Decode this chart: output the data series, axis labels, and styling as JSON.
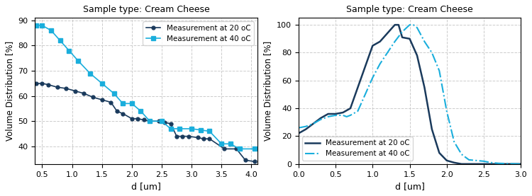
{
  "title": "Sample type: Cream Cheese",
  "xlabel": "d [um]",
  "ylabel": "Volume Distribution [%]",
  "left_x_20": [
    0.4,
    0.5,
    0.6,
    0.75,
    0.9,
    1.05,
    1.2,
    1.35,
    1.5,
    1.65,
    1.75,
    1.85,
    2.0,
    2.1,
    2.2,
    2.3,
    2.45,
    2.55,
    2.65,
    2.75,
    2.85,
    2.95,
    3.1,
    3.2,
    3.3,
    3.55,
    3.75,
    3.9,
    4.05
  ],
  "left_y_20": [
    65,
    65,
    64.5,
    63.5,
    63,
    62,
    61,
    59.5,
    58.5,
    57.5,
    54,
    53,
    51,
    51,
    50.5,
    50,
    50,
    49.5,
    49,
    44,
    44,
    44,
    43.5,
    43,
    43,
    39,
    39,
    34.5,
    34
  ],
  "left_x_40": [
    0.4,
    0.5,
    0.65,
    0.8,
    0.95,
    1.1,
    1.3,
    1.5,
    1.7,
    1.85,
    2.0,
    2.15,
    2.3,
    2.5,
    2.65,
    2.8,
    3.0,
    3.15,
    3.3,
    3.5,
    3.65,
    3.8,
    4.05
  ],
  "left_y_40": [
    88,
    88,
    86,
    82,
    78,
    74,
    69,
    65,
    61,
    57,
    57,
    54,
    50,
    50,
    47,
    47,
    47,
    46.5,
    46,
    41,
    41,
    39,
    39
  ],
  "right_x_20": [
    0.0,
    0.1,
    0.2,
    0.3,
    0.4,
    0.45,
    0.5,
    0.6,
    0.7,
    0.8,
    0.9,
    1.0,
    1.1,
    1.2,
    1.3,
    1.35,
    1.4,
    1.5,
    1.6,
    1.7,
    1.8,
    1.9,
    2.0,
    2.1,
    2.15,
    2.2,
    2.5,
    3.0
  ],
  "right_y_20": [
    22,
    25,
    29,
    33,
    36,
    36,
    36,
    37,
    40,
    55,
    70,
    85,
    88,
    94,
    100,
    100,
    91,
    90,
    78,
    55,
    25,
    8,
    2.5,
    1,
    0.5,
    0,
    0,
    0
  ],
  "right_x_40": [
    0.0,
    0.1,
    0.2,
    0.3,
    0.4,
    0.5,
    0.55,
    0.6,
    0.65,
    0.7,
    0.8,
    0.9,
    1.0,
    1.1,
    1.2,
    1.3,
    1.4,
    1.5,
    1.55,
    1.6,
    1.7,
    1.8,
    1.9,
    2.0,
    2.1,
    2.2,
    2.3,
    2.5,
    2.6,
    2.7,
    3.0
  ],
  "right_y_40": [
    26,
    27,
    29,
    32,
    34,
    35,
    35,
    35,
    34,
    35,
    38,
    50,
    62,
    72,
    80,
    88,
    95,
    100,
    100,
    98,
    88,
    80,
    67,
    38,
    16,
    7,
    3,
    2,
    1,
    0.5,
    0
  ],
  "color_20": "#1a3a5c",
  "color_40": "#1aaedc",
  "left_xlim": [
    0.38,
    4.1
  ],
  "left_ylim": [
    33,
    91
  ],
  "left_yticks": [
    40,
    50,
    60,
    70,
    80,
    90
  ],
  "left_xticks": [
    0.5,
    1.0,
    1.5,
    2.0,
    2.5,
    3.0,
    3.5,
    4.0
  ],
  "right_xlim": [
    0.0,
    3.0
  ],
  "right_ylim": [
    0,
    105
  ],
  "right_yticks": [
    0,
    20,
    40,
    60,
    80,
    100
  ],
  "right_xticks": [
    0.0,
    0.5,
    1.0,
    1.5,
    2.0,
    2.5,
    3.0
  ]
}
